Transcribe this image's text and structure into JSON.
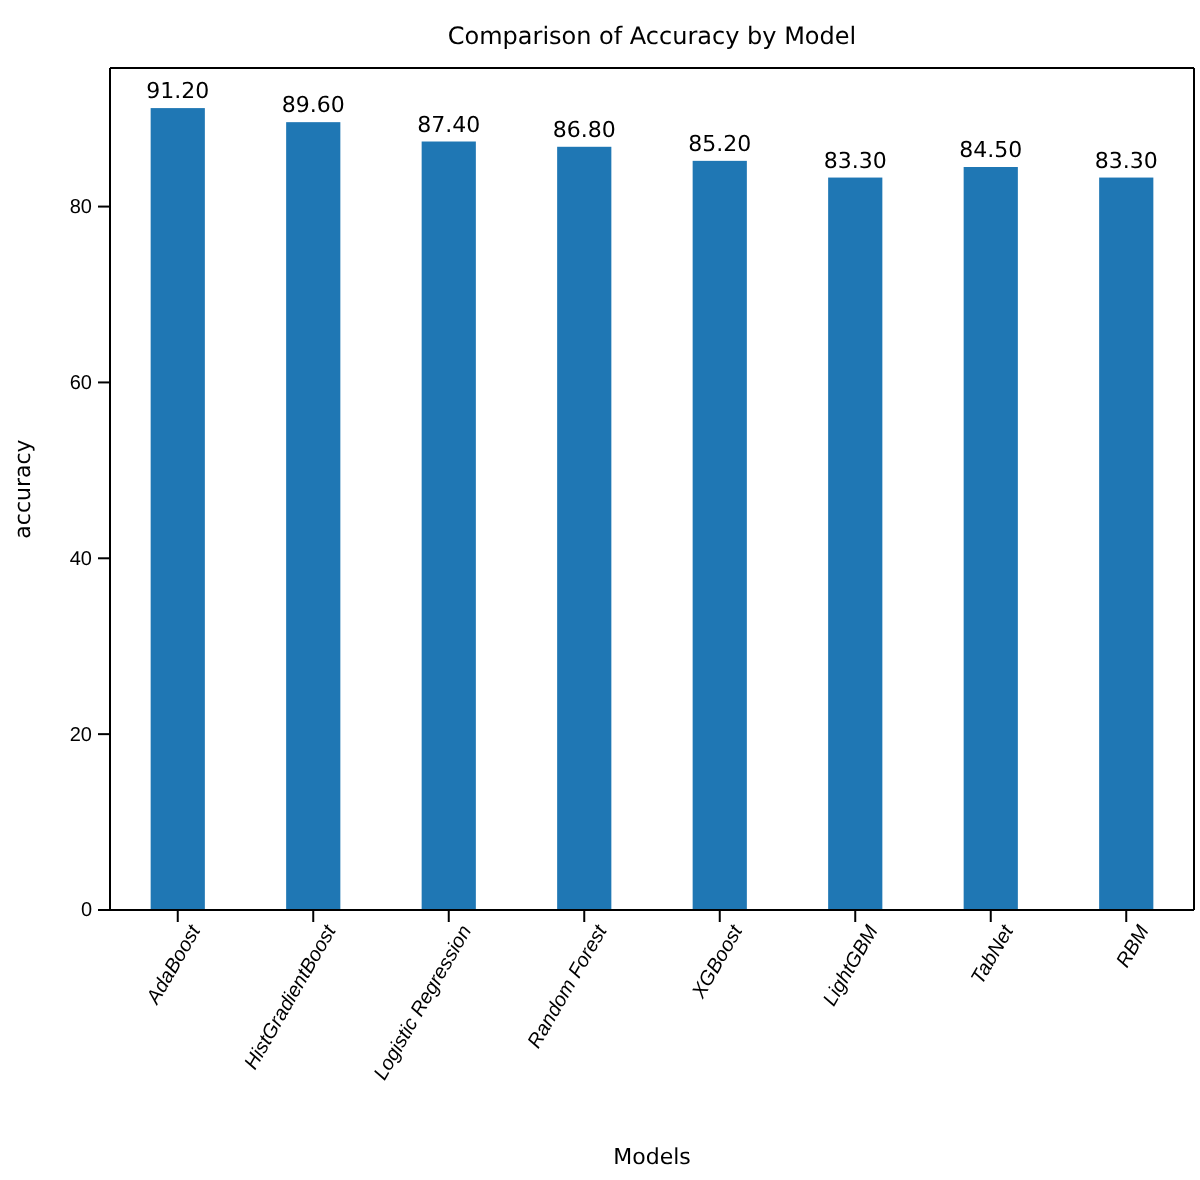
{
  "chart_data": {
    "type": "bar",
    "title": "Comparison of Accuracy by Model",
    "xlabel": "Models",
    "ylabel": "accuracy",
    "categories": [
      "AdaBoost",
      "HistGradientBoost",
      "Logistic Regression",
      "Random Forest",
      "XGBoost",
      "LightGBM",
      "TabNet",
      "RBM"
    ],
    "values": [
      91.2,
      89.6,
      87.4,
      86.8,
      85.2,
      83.3,
      84.5,
      83.3
    ],
    "value_labels": [
      "91.20",
      "89.60",
      "87.40",
      "86.80",
      "85.20",
      "83.30",
      "84.50",
      "83.30"
    ],
    "color": "#1f77b4",
    "ylim": [
      0,
      95.76
    ],
    "yticks": [
      0,
      20,
      40,
      60,
      80
    ],
    "grid": false
  }
}
